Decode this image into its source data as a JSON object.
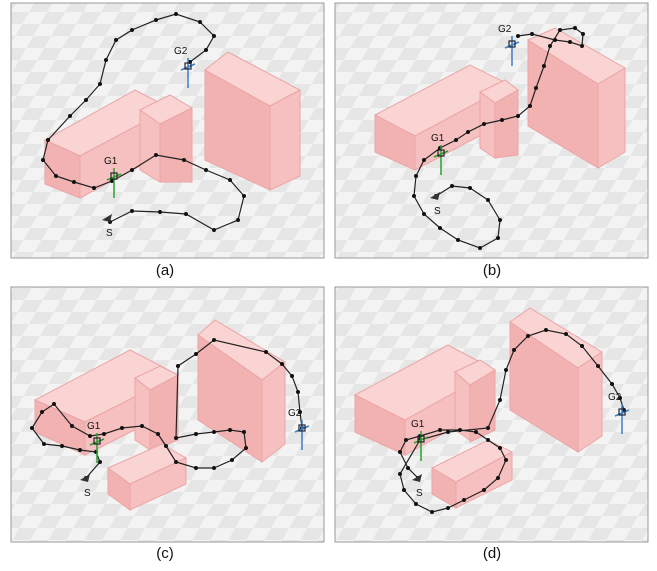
{
  "panels": [
    {
      "caption": "(a)",
      "goal1": "G1",
      "goal2": "G2",
      "start": "S"
    },
    {
      "caption": "(b)",
      "goal1": "G1",
      "goal2": "G2",
      "start": "S"
    },
    {
      "caption": "(c)",
      "goal1": "G1",
      "goal2": "G2",
      "start": "S"
    },
    {
      "caption": "(d)",
      "goal1": "G1",
      "goal2": "G2",
      "start": "S"
    }
  ]
}
